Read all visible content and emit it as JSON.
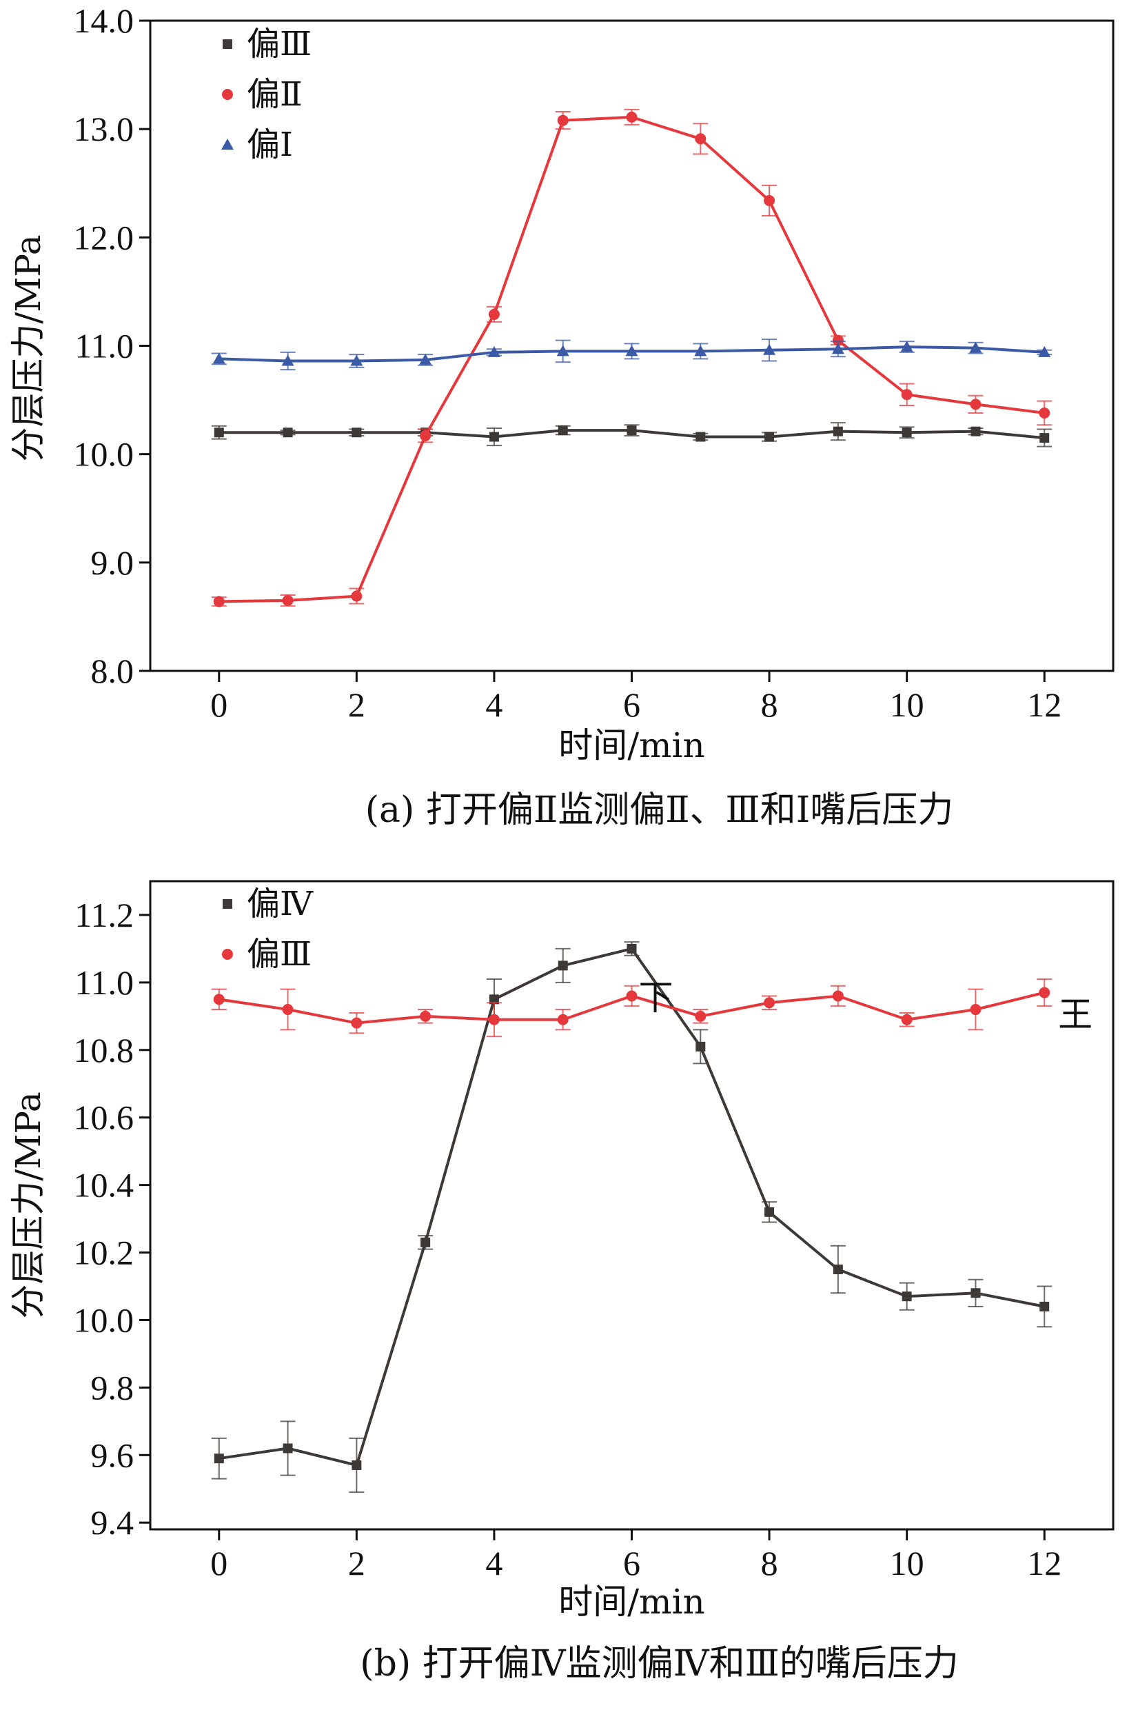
{
  "chart_data": [
    {
      "type": "line",
      "caption": "(a) 打开偏Ⅱ监测偏Ⅱ、Ⅲ和Ⅰ嘴后压力",
      "xlabel": "时间/min",
      "ylabel": "分层压力/MPa",
      "xlim": [
        -1,
        13
      ],
      "ylim": [
        8.0,
        14.0
      ],
      "xticks": [
        0,
        2,
        4,
        6,
        8,
        10,
        12
      ],
      "yticks": [
        8.0,
        9.0,
        10.0,
        11.0,
        12.0,
        13.0,
        14.0
      ],
      "ytick_labels": [
        "8.0",
        "9.0",
        "10.0",
        "11.0",
        "12.0",
        "13.0",
        "14.0"
      ],
      "legend_position": "top-left",
      "annotations": [],
      "series": [
        {
          "name": "偏Ⅲ",
          "color": "#3d3936",
          "marker": "square",
          "x": [
            0,
            1,
            2,
            3,
            4,
            5,
            6,
            7,
            8,
            9,
            10,
            11,
            12
          ],
          "values": [
            10.2,
            10.2,
            10.2,
            10.2,
            10.16,
            10.22,
            10.22,
            10.16,
            10.16,
            10.21,
            10.2,
            10.21,
            10.15
          ],
          "errors": [
            0.06,
            0.02,
            0.03,
            0.03,
            0.08,
            0.04,
            0.05,
            0.03,
            0.04,
            0.08,
            0.05,
            0.03,
            0.08
          ]
        },
        {
          "name": "偏Ⅱ",
          "color": "#e5383c",
          "marker": "circle",
          "x": [
            0,
            1,
            2,
            3,
            4,
            5,
            6,
            7,
            8,
            9,
            10,
            11,
            12
          ],
          "values": [
            8.64,
            8.65,
            8.69,
            10.17,
            11.29,
            13.08,
            13.11,
            12.91,
            12.34,
            11.05,
            10.55,
            10.46,
            10.38
          ],
          "errors": [
            0.04,
            0.05,
            0.07,
            0.06,
            0.07,
            0.08,
            0.07,
            0.14,
            0.14,
            0.04,
            0.1,
            0.08,
            0.11
          ]
        },
        {
          "name": "偏Ⅰ",
          "color": "#3b5aa6",
          "marker": "triangle",
          "x": [
            0,
            1,
            2,
            3,
            4,
            5,
            6,
            7,
            8,
            9,
            10,
            11,
            12
          ],
          "values": [
            10.88,
            10.86,
            10.86,
            10.87,
            10.94,
            10.95,
            10.95,
            10.95,
            10.96,
            10.97,
            10.99,
            10.98,
            10.94
          ],
          "errors": [
            0.05,
            0.08,
            0.06,
            0.05,
            0.03,
            0.1,
            0.07,
            0.07,
            0.1,
            0.07,
            0.05,
            0.05,
            0.02
          ]
        }
      ]
    },
    {
      "type": "line",
      "caption": "(b) 打开偏Ⅳ监测偏Ⅳ和Ⅲ的嘴后压力",
      "xlabel": "时间/min",
      "ylabel": "分层压力/MPa",
      "xlim": [
        -1,
        13
      ],
      "ylim": [
        9.38,
        11.3
      ],
      "xticks": [
        0,
        2,
        4,
        6,
        8,
        10,
        12
      ],
      "yticks": [
        9.4,
        9.6,
        9.8,
        10.0,
        10.2,
        10.4,
        10.6,
        10.8,
        11.0,
        11.2
      ],
      "ytick_labels": [
        "9.4",
        "9.6",
        "9.8",
        "10.0",
        "10.2",
        "10.4",
        "10.6",
        "10.8",
        "11.0",
        "11.2"
      ],
      "legend_position": "top-left",
      "annotations": [
        {
          "text": "下",
          "x": 6.1,
          "y": 10.92
        },
        {
          "text": "王",
          "x": 12.2,
          "y": 10.87
        }
      ],
      "series": [
        {
          "name": "偏Ⅳ",
          "color": "#3d3936",
          "marker": "square",
          "x": [
            0,
            1,
            2,
            3,
            4,
            5,
            6,
            7,
            8,
            9,
            10,
            11,
            12
          ],
          "values": [
            9.59,
            9.62,
            9.57,
            10.23,
            10.95,
            11.05,
            11.1,
            10.81,
            10.32,
            10.15,
            10.07,
            10.08,
            10.04
          ],
          "errors": [
            0.06,
            0.08,
            0.08,
            0.02,
            0.06,
            0.05,
            0.02,
            0.05,
            0.03,
            0.07,
            0.04,
            0.04,
            0.06
          ]
        },
        {
          "name": "偏Ⅲ",
          "color": "#e5383c",
          "marker": "circle",
          "x": [
            0,
            1,
            2,
            3,
            4,
            5,
            6,
            7,
            8,
            9,
            10,
            11,
            12
          ],
          "values": [
            10.95,
            10.92,
            10.88,
            10.9,
            10.89,
            10.89,
            10.96,
            10.9,
            10.94,
            10.96,
            10.89,
            10.92,
            10.97
          ],
          "errors": [
            0.03,
            0.06,
            0.03,
            0.02,
            0.05,
            0.03,
            0.03,
            0.02,
            0.02,
            0.03,
            0.02,
            0.06,
            0.04
          ]
        }
      ]
    }
  ]
}
